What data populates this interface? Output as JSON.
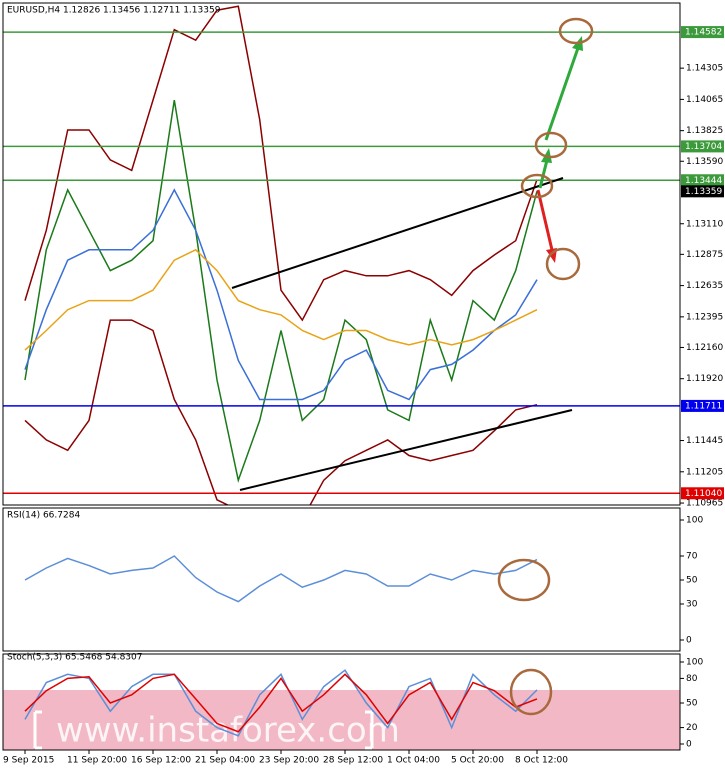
{
  "chart_data": [
    {
      "type": "line",
      "title": "EURUSD,H4  1.12826 1.13456 1.12711 1.13359",
      "categories": [
        "9 Sep 2015",
        null,
        null,
        "11 Sep 20:00",
        null,
        null,
        "16 Sep 12:00",
        null,
        null,
        "21 Sep 04:00",
        null,
        null,
        "23 Sep 20:00",
        null,
        null,
        "28 Sep 12:00",
        null,
        null,
        "1 Oct 04:00",
        null,
        null,
        "5 Oct 20:00",
        null,
        null,
        "8 Oct 12:00",
        null,
        null,
        null,
        null,
        null,
        null
      ],
      "series": [
        {
          "color": "#1a7a1a",
          "values": [
            1.1191,
            1.1291,
            1.1337,
            1.1306,
            1.1275,
            1.1283,
            1.1298,
            1.1406,
            1.1306,
            1.1191,
            1.1114,
            1.116,
            1.1229,
            1.116,
            1.1176,
            1.1237,
            1.1222,
            1.1168,
            1.116,
            1.1237,
            1.1191,
            1.1252,
            1.1237,
            1.1275,
            1.1336,
            null,
            null,
            null,
            null,
            null,
            null
          ]
        },
        {
          "color": "#8b0000",
          "values": [
            1.1252,
            1.1306,
            1.1383,
            1.1383,
            1.136,
            1.1352,
            1.1406,
            1.146,
            1.1452,
            1.1475,
            1.1478,
            1.1391,
            1.126,
            1.1237,
            1.1268,
            1.1275,
            1.1271,
            1.1271,
            1.1275,
            1.1268,
            1.1256,
            1.1275,
            1.1287,
            1.1298,
            1.1345,
            null,
            null,
            null,
            null,
            null,
            null
          ]
        },
        {
          "color": "#8b0000",
          "values": [
            1.116,
            1.1145,
            1.1137,
            1.116,
            1.1237,
            1.1237,
            1.1229,
            1.1176,
            1.1145,
            1.1099,
            1.1091,
            1.1088,
            1.1086,
            1.1084,
            1.1114,
            1.1129,
            1.1137,
            1.1145,
            1.1133,
            1.1129,
            1.1133,
            1.1137,
            1.1152,
            1.1168,
            1.1172,
            null,
            null,
            null,
            null,
            null,
            null
          ]
        },
        {
          "color": "#3a6fd8",
          "values": [
            1.1199,
            1.1245,
            1.1283,
            1.1291,
            1.1291,
            1.1291,
            1.1306,
            1.1337,
            1.1306,
            1.126,
            1.1206,
            1.1176,
            1.1176,
            1.1176,
            1.1183,
            1.1206,
            1.1214,
            1.1183,
            1.1176,
            1.1199,
            1.1203,
            1.1214,
            1.1229,
            1.1241,
            1.1268,
            null,
            null,
            null,
            null,
            null,
            null
          ]
        },
        {
          "color": "#e8a317",
          "values": [
            1.1214,
            1.1229,
            1.1245,
            1.1252,
            1.1252,
            1.1252,
            1.126,
            1.1283,
            1.1291,
            1.1275,
            1.1252,
            1.1245,
            1.1241,
            1.1229,
            1.1222,
            1.1229,
            1.1229,
            1.1222,
            1.1218,
            1.1222,
            1.1218,
            1.1222,
            1.1229,
            1.1237,
            1.1245,
            null,
            null,
            null,
            null,
            null,
            null
          ]
        }
      ],
      "ylim": [
        1.1095,
        1.1479
      ],
      "yticks": [
        1.14305,
        1.14065,
        1.13825,
        {
          "value": 1.1359,
          "label": "1.13590"
        },
        {
          "value": 1.1311,
          "label": "1.13110"
        },
        1.12875,
        1.12635,
        1.12395,
        {
          "value": 1.1216,
          "label": "1.12160"
        },
        {
          "value": 1.1192,
          "label": "1.11920"
        },
        1.11445,
        {
          "value": 1.11205,
          "label": "1.11205"
        },
        1.10965
      ],
      "levels": [
        {
          "value": 1.14582,
          "color": "#3c9a3c"
        },
        {
          "value": 1.13704,
          "color": "#3c9a3c"
        },
        {
          "value": 1.13444,
          "color": "#3c9a3c"
        },
        {
          "value": 1.13359,
          "color": "#000000"
        },
        {
          "value": 1.11711,
          "color": "#0000ee"
        },
        {
          "value": 1.1104,
          "label": "1.11040",
          "color": "#e00000"
        }
      ]
    },
    {
      "type": "line",
      "title": "RSI(14) 66.7284",
      "series": [
        {
          "color": "#5b8fd8",
          "values": [
            50,
            60,
            68,
            62,
            55,
            58,
            60,
            70,
            52,
            40,
            32,
            45,
            55,
            44,
            50,
            58,
            55,
            45,
            45,
            55,
            50,
            58,
            55,
            58,
            67,
            null,
            null,
            null,
            null,
            null,
            null
          ]
        }
      ],
      "ylim": [
        0,
        100
      ],
      "yticks": [
        100,
        70,
        50,
        30,
        0
      ]
    },
    {
      "type": "line",
      "title": "Stoch(5,3,3) 65.5468 54.8307",
      "series": [
        {
          "color": "#5b8fd8",
          "values": [
            30,
            75,
            85,
            80,
            40,
            70,
            85,
            85,
            40,
            20,
            10,
            60,
            85,
            30,
            70,
            90,
            50,
            20,
            70,
            80,
            20,
            85,
            60,
            40,
            66,
            null,
            null,
            null,
            null,
            null,
            null
          ]
        },
        {
          "color": "#e00000",
          "values": [
            40,
            65,
            80,
            82,
            50,
            60,
            80,
            85,
            55,
            25,
            15,
            45,
            80,
            40,
            60,
            85,
            60,
            25,
            60,
            75,
            30,
            75,
            65,
            45,
            55,
            null,
            null,
            null,
            null,
            null,
            null
          ]
        }
      ],
      "ylim": [
        0,
        100
      ],
      "yticks": [
        100,
        80,
        50,
        20,
        0
      ]
    }
  ],
  "watermark": "www.instaforex.com"
}
